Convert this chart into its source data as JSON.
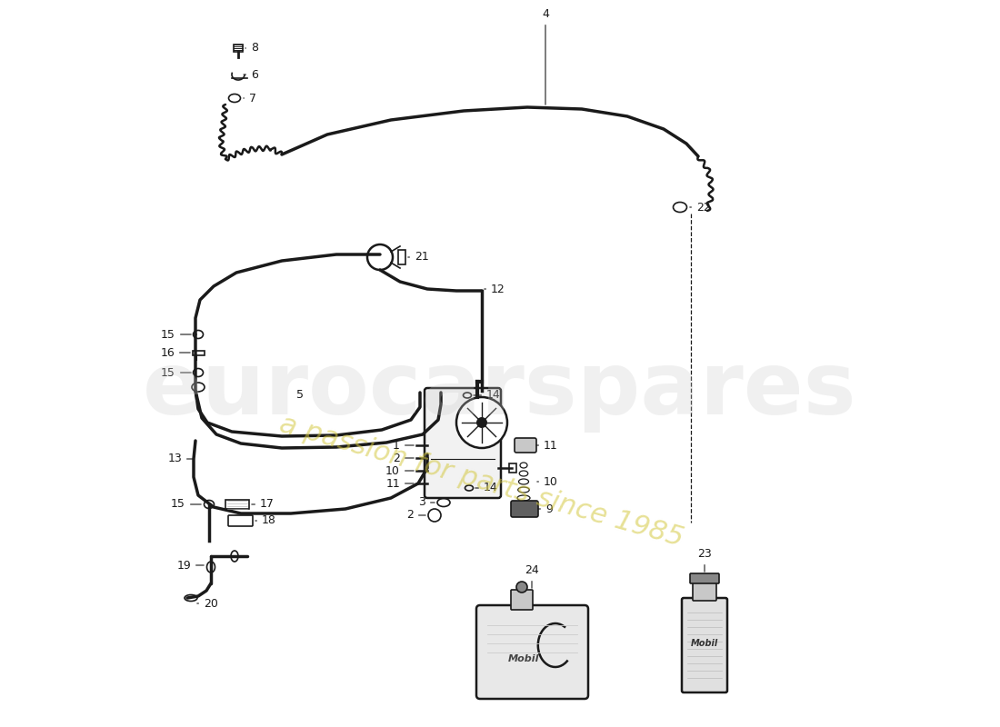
{
  "background_color": "#ffffff",
  "line_color": "#1a1a1a",
  "watermark_text": "eurocarspares",
  "watermark_subtext": "a passion for parts since 1985",
  "watermark_color": "#cccccc",
  "watermark_subcolor": "#d4c840"
}
